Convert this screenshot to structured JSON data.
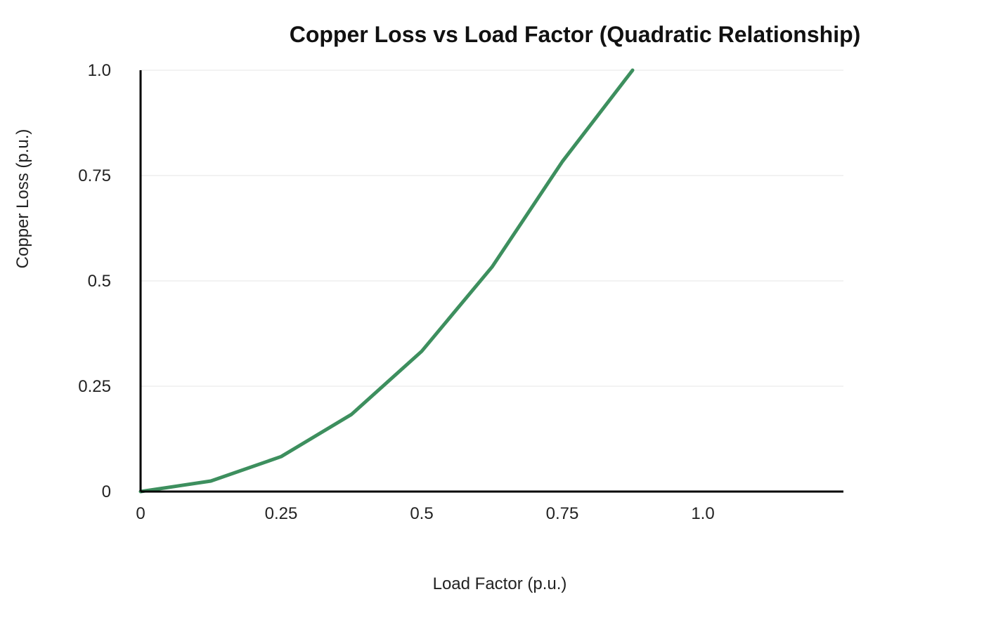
{
  "chart_data": {
    "type": "line",
    "title": "Copper Loss vs Load Factor (Quadratic Relationship)",
    "xlabel": "Load Factor (p.u.)",
    "ylabel": "Copper Loss (p.u.)",
    "xlim": [
      0,
      1.25
    ],
    "ylim": [
      0,
      1.0
    ],
    "x_ticks": [
      0,
      0.25,
      0.5,
      0.75,
      1.0
    ],
    "x_tick_labels": [
      "0",
      "0.25",
      "0.5",
      "0.75",
      "1.0"
    ],
    "y_ticks": [
      0,
      0.25,
      0.5,
      0.75,
      1.0
    ],
    "y_tick_labels": [
      "0",
      "0.25",
      "0.5",
      "0.75",
      "1.0"
    ],
    "grid": "horizontal",
    "series": [
      {
        "color": "#3d8f5e",
        "x": [
          0,
          0.125,
          0.25,
          0.375,
          0.5,
          0.625,
          0.75,
          0.875
        ],
        "y": [
          0,
          0.025,
          0.083,
          0.183,
          0.333,
          0.533,
          0.783,
          1.0
        ]
      }
    ]
  }
}
